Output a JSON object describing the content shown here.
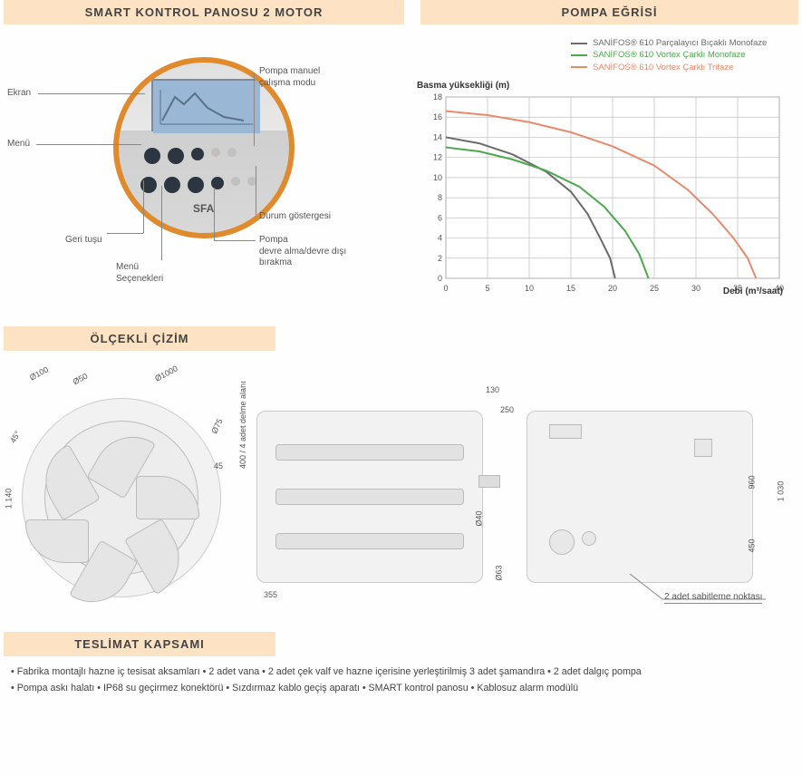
{
  "sections": {
    "control_panel_title": "SMART KONTROL PANOSU 2 MOTOR",
    "pump_curve_title": "POMPA EĞRİSİ",
    "scale_drawing_title": "ÖLÇEKLİ ÇİZİM",
    "delivery_scope_title": "TESLİMAT KAPSAMI"
  },
  "control_panel": {
    "brand": "SFA",
    "callouts": {
      "ekran": "Ekran",
      "menu": "Menü",
      "geri_tusu": "Geri tuşu",
      "menu_secenekleri": "Menü\nSeçenekleri",
      "manuel_mod": "Pompa manuel\nçalışma modu",
      "durum_gostergesi": "Durum göstergesi",
      "devre": "Pompa\ndevre alma/devre dışı\nbırakma"
    },
    "ring_color": "#e08a2e",
    "screen_color": "#9ab7d6",
    "button_color": "#2c3640"
  },
  "pump_curve": {
    "y_axis_title": "Basma yüksekliği (m)",
    "x_axis_title": "Debi (m³/saat)",
    "xlim": [
      0,
      40
    ],
    "ylim": [
      0,
      18
    ],
    "xtick_step": 5,
    "ytick_step": 2,
    "grid_color": "#bfbfbf",
    "background_color": "#ffffff",
    "axis_font_size": 9,
    "series": [
      {
        "name": "SANİFOS® 610 Parçalayıcı Bıçaklı Monofaze",
        "color": "#6b6b6b",
        "points": [
          [
            0,
            14
          ],
          [
            4,
            13.4
          ],
          [
            8,
            12.3
          ],
          [
            12,
            10.6
          ],
          [
            15,
            8.6
          ],
          [
            17,
            6.4
          ],
          [
            18.5,
            4
          ],
          [
            19.7,
            2
          ],
          [
            20.3,
            0
          ]
        ]
      },
      {
        "name": "SANİFOS® 610 Vortex Çarklı Monofaze",
        "color": "#4da94d",
        "points": [
          [
            0,
            13
          ],
          [
            4,
            12.6
          ],
          [
            8,
            11.8
          ],
          [
            12,
            10.7
          ],
          [
            16,
            9.1
          ],
          [
            19,
            7.1
          ],
          [
            21.5,
            4.7
          ],
          [
            23.2,
            2.4
          ],
          [
            24.3,
            0
          ]
        ]
      },
      {
        "name": "SANİFOS® 610 Vortex Çarklı Trifaze",
        "color": "#e98a6b",
        "points": [
          [
            0,
            16.6
          ],
          [
            5,
            16.2
          ],
          [
            10,
            15.5
          ],
          [
            15,
            14.5
          ],
          [
            20,
            13.1
          ],
          [
            25,
            11.2
          ],
          [
            29,
            8.8
          ],
          [
            32,
            6.4
          ],
          [
            34.5,
            4
          ],
          [
            36.2,
            2
          ],
          [
            37.2,
            0
          ]
        ]
      }
    ]
  },
  "scale_drawing": {
    "top_view": {
      "dims": {
        "d100": "Ø100",
        "d50": "Ø50",
        "d1000": "Ø1000",
        "d75": "Ø75",
        "angle45a": "45°",
        "angle45b": "45",
        "h1140": "1 140"
      }
    },
    "side_view": {
      "dims": {
        "h130": "130",
        "h250": "250",
        "h400": "400 / 4 adet delme alanı",
        "h355": "355",
        "d40": "Ø40",
        "d63": "Ø63"
      }
    },
    "side_view2": {
      "dims": {
        "h960": "960",
        "h450": "450",
        "h1030": "1 030"
      },
      "note": "2 adet sabitleme noktası"
    }
  },
  "delivery_scope": {
    "line1": "• Fabrika montajlı hazne iç tesisat aksamları • 2 adet vana • 2 adet çek valf ve hazne içerisine yerleştirilmiş 3 adet şamandıra  •  2 adet dalgıç pompa",
    "line2": "• Pompa askı halatı • IP68 su geçirmez konektörü • Sızdırmaz kablo geçiş aparatı • SMART kontrol panosu • Kablosuz alarm modülü"
  },
  "colors": {
    "title_bg": "#fde2c3",
    "text": "#444444"
  }
}
